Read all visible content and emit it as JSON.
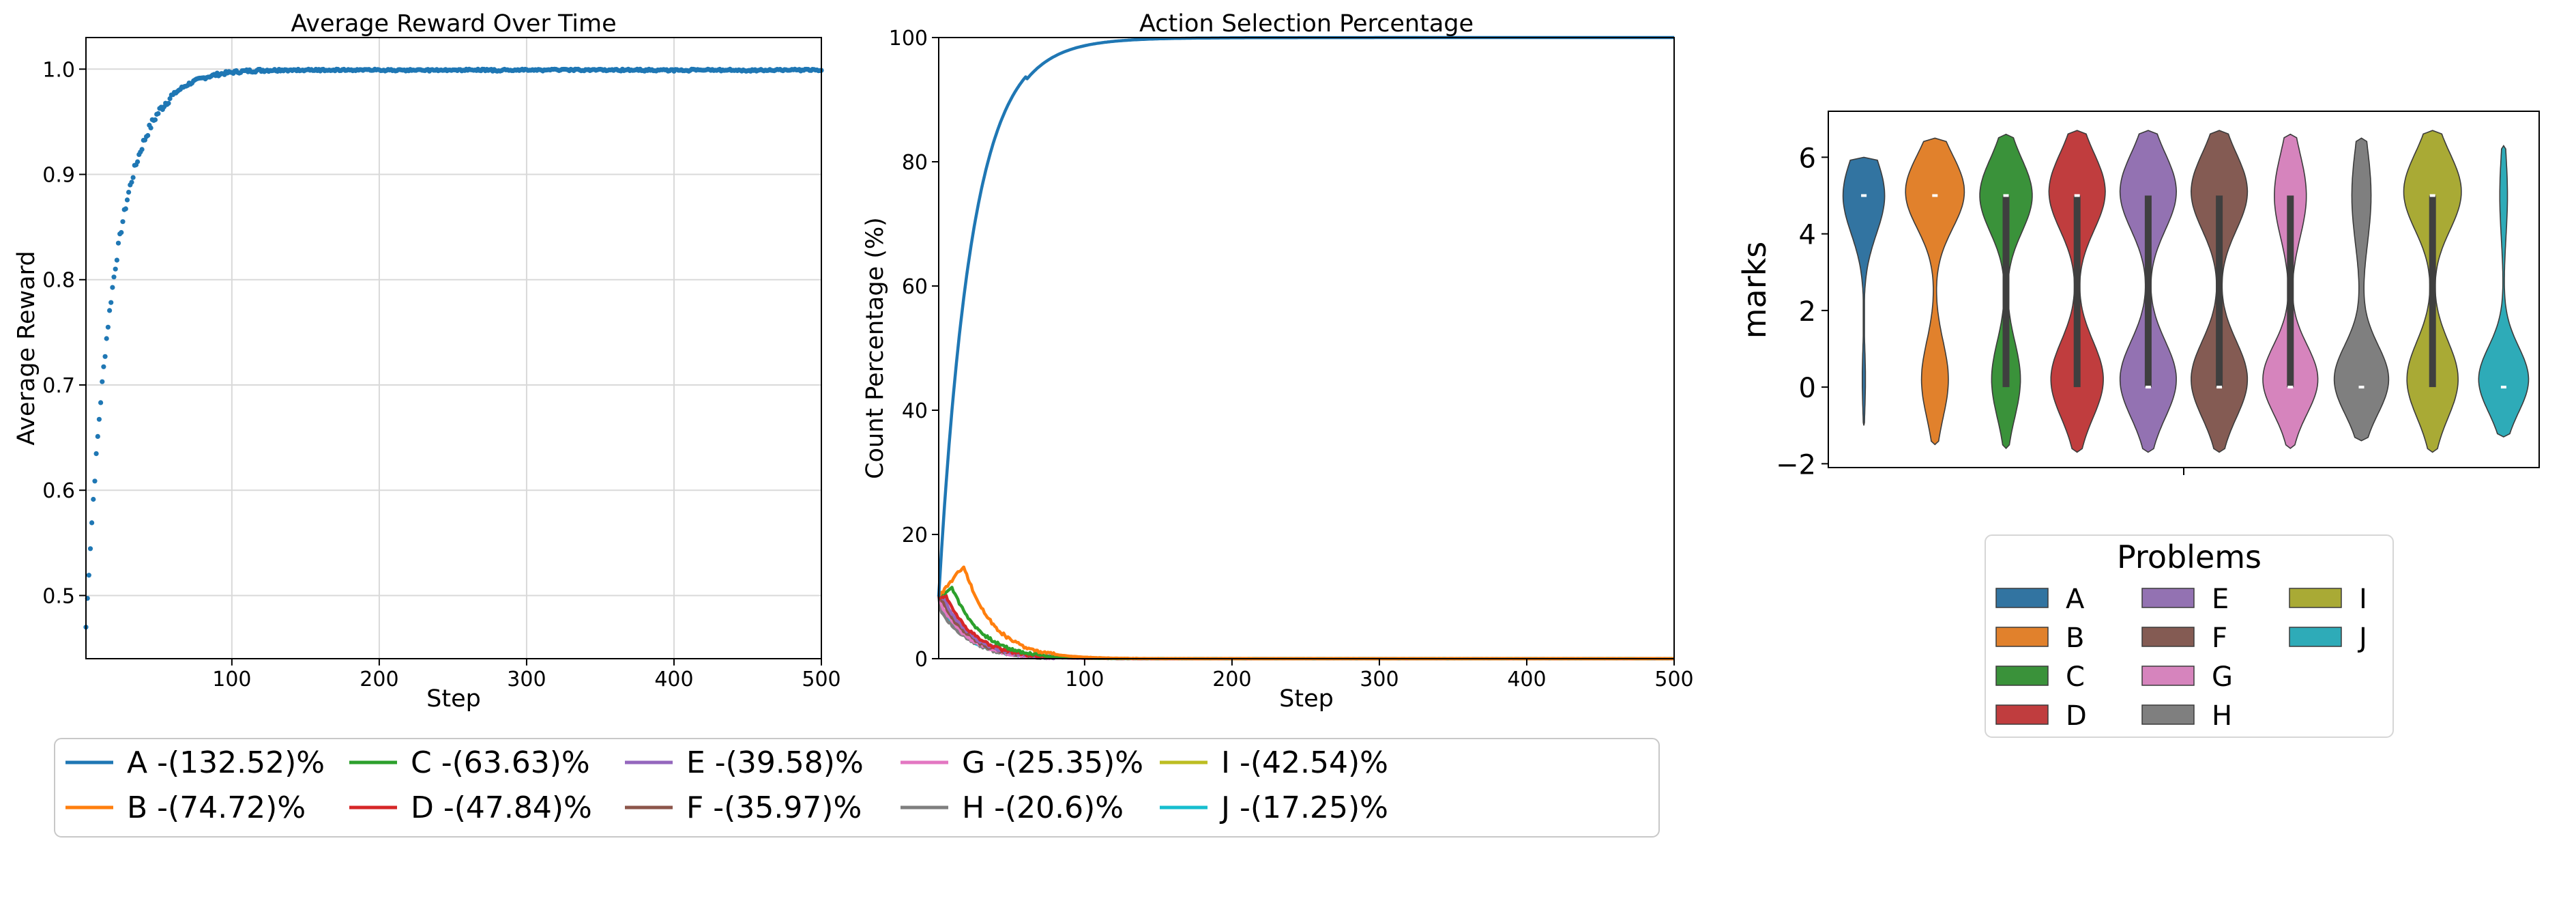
{
  "chart_data": [
    {
      "type": "scatter",
      "title": "Average Reward Over Time",
      "xlabel": "Step",
      "ylabel": "Average Reward",
      "xlim": [
        1,
        500
      ],
      "ylim": [
        0.44,
        1.03
      ],
      "xticks": [
        100,
        200,
        300,
        400,
        500
      ],
      "yticks": [
        0.5,
        0.6,
        0.7,
        0.8,
        0.9,
        1.0
      ],
      "ytick_labels": [
        "0.5",
        "0.6",
        "0.7",
        "0.8",
        "0.9",
        "1.0"
      ],
      "grid": true,
      "color": "#1f77b4",
      "curve": {
        "start": 0.47,
        "end": 1.0,
        "rate": 0.052
      },
      "steps": 500
    },
    {
      "type": "line",
      "title": "Action Selection Percentage",
      "xlabel": "Step",
      "ylabel": "Count Percentage (%)",
      "xlim": [
        1,
        500
      ],
      "ylim": [
        0,
        100
      ],
      "xticks": [
        100,
        200,
        300,
        400,
        500
      ],
      "yticks": [
        0,
        20,
        40,
        60,
        80,
        100
      ],
      "grid": false,
      "series": [
        {
          "name": "A -(132.52)%",
          "color": "#1f77b4",
          "start": 10,
          "end": 100,
          "peak_step": null,
          "peak": null
        },
        {
          "name": "B -(74.72)%",
          "color": "#ff7f0e",
          "start": 10,
          "end": 0,
          "peak_step": 18,
          "peak": 15
        },
        {
          "name": "C -(63.63)%",
          "color": "#2ca02c",
          "start": 10,
          "end": 0,
          "peak_step": 10,
          "peak": 11.5
        },
        {
          "name": "D -(47.84)%",
          "color": "#d62728",
          "start": 10,
          "end": 0,
          "peak_step": 6,
          "peak": 10
        },
        {
          "name": "E -(39.58)%",
          "color": "#9467bd",
          "start": 10,
          "end": 0,
          "peak_step": 5,
          "peak": 9.5
        },
        {
          "name": "F -(35.97)%",
          "color": "#8c564b",
          "start": 10,
          "end": 0,
          "peak_step": 4,
          "peak": 9
        },
        {
          "name": "G -(25.35)%",
          "color": "#e377c2",
          "start": 10,
          "end": 0,
          "peak_step": 3,
          "peak": 8.5
        },
        {
          "name": "H -(20.6)%",
          "color": "#7f7f7f",
          "start": 10,
          "end": 0,
          "peak_step": 2,
          "peak": 8
        },
        {
          "name": "I -(42.54)%",
          "color": "#bcbd22",
          "start": 10,
          "end": 0,
          "peak_step": 4,
          "peak": 9.2
        },
        {
          "name": "J -(17.25)%",
          "color": "#17becf",
          "start": 10,
          "end": 0,
          "peak_step": 1,
          "peak": 9
        }
      ],
      "legend_position": "bottom"
    },
    {
      "type": "violin",
      "title": "",
      "xlabel": "",
      "ylabel": "marks",
      "ylim": [
        -2.1,
        7.2
      ],
      "yticks": [
        -2,
        0,
        2,
        4,
        6
      ],
      "ytick_labels": [
        "−2",
        "0",
        "2",
        "4",
        "6"
      ],
      "legend_title": "Problems",
      "legend_position": "below",
      "categories": [
        "A",
        "B",
        "C",
        "D",
        "E",
        "F",
        "G",
        "H",
        "I",
        "J"
      ],
      "series": [
        {
          "name": "A",
          "color": "#3274a1",
          "median": 5,
          "q1": 5,
          "q3": 5,
          "min": -1.0,
          "max": 6.0,
          "modes": [
            [
              5.0,
              0.65,
              1.0
            ],
            [
              0.2,
              0.05,
              0.8
            ]
          ]
        },
        {
          "name": "B",
          "color": "#e1812c",
          "median": 5,
          "q1": 5,
          "q3": 5,
          "min": -1.5,
          "max": 6.5,
          "modes": [
            [
              5.1,
              0.92,
              0.95
            ],
            [
              0.2,
              0.42,
              1.0
            ]
          ]
        },
        {
          "name": "C",
          "color": "#3a923a",
          "median": 5,
          "q1": 0,
          "q3": 5,
          "min": -1.6,
          "max": 6.6,
          "modes": [
            [
              5.0,
              0.82,
              0.95
            ],
            [
              0.2,
              0.45,
              1.0
            ]
          ]
        },
        {
          "name": "D",
          "color": "#c03d3e",
          "median": 5,
          "q1": 0,
          "q3": 5,
          "min": -1.7,
          "max": 6.7,
          "modes": [
            [
              5.1,
              0.88,
              1.0
            ],
            [
              0.2,
              0.82,
              1.0
            ]
          ]
        },
        {
          "name": "E",
          "color": "#9372b2",
          "median": 0,
          "q1": 0,
          "q3": 5,
          "min": -1.7,
          "max": 6.7,
          "modes": [
            [
              5.1,
              0.88,
              1.0
            ],
            [
              0.2,
              0.88,
              1.0
            ]
          ]
        },
        {
          "name": "F",
          "color": "#845b53",
          "median": 0,
          "q1": 0,
          "q3": 5,
          "min": -1.7,
          "max": 6.7,
          "modes": [
            [
              5.1,
              0.88,
              1.0
            ],
            [
              0.2,
              0.88,
              1.0
            ]
          ]
        },
        {
          "name": "G",
          "color": "#d684bd",
          "median": 0,
          "q1": 0,
          "q3": 5,
          "min": -1.6,
          "max": 6.6,
          "modes": [
            [
              5.0,
              0.5,
              1.1
            ],
            [
              0.2,
              0.86,
              0.9
            ]
          ]
        },
        {
          "name": "H",
          "color": "#7f7f7f",
          "median": 0,
          "q1": 0,
          "q3": 0,
          "min": -1.4,
          "max": 6.5,
          "modes": [
            [
              5.0,
              0.3,
              1.3
            ],
            [
              0.2,
              0.85,
              0.9
            ]
          ]
        },
        {
          "name": "I",
          "color": "#a9aa35",
          "median": 5,
          "q1": 0,
          "q3": 5,
          "min": -1.7,
          "max": 6.7,
          "modes": [
            [
              5.1,
              0.9,
              1.0
            ],
            [
              0.2,
              0.8,
              1.0
            ]
          ]
        },
        {
          "name": "J",
          "color": "#2eabb8",
          "median": 0,
          "q1": 0,
          "q3": 0,
          "min": -1.3,
          "max": 6.3,
          "modes": [
            [
              5.0,
              0.12,
              1.1
            ],
            [
              0.2,
              0.78,
              0.85
            ]
          ]
        }
      ]
    }
  ]
}
